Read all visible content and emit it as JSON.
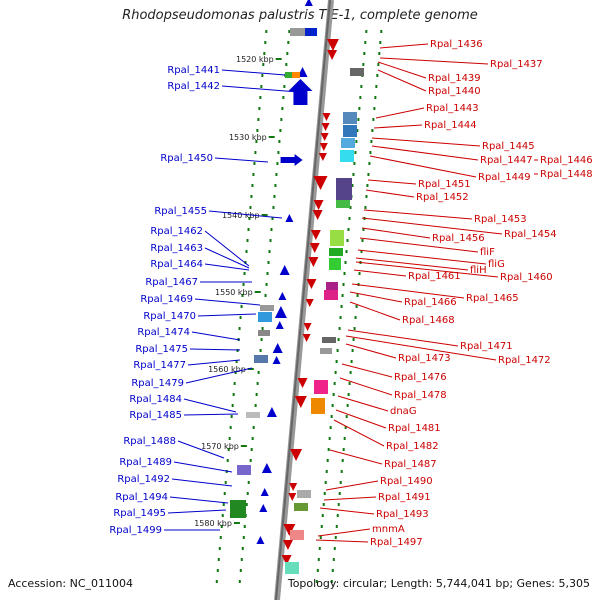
{
  "title": "Rhodopseudomonas palustris TIE-1, complete genome",
  "accession": "Accession: NC_011004",
  "topology": "Topology: circular; Length: 5,744,041 bp; Genes: 5,305",
  "colors": {
    "forward": "#0000cc",
    "reverse": "#cc0000",
    "tick": "#117711"
  },
  "kbp_ticks": [
    "1520 kbp",
    "1530 kbp",
    "1540 kbp",
    "1550 kbp",
    "1560 kbp",
    "1570 kbp",
    "1580 kbp"
  ],
  "left_labels": [
    "Rpal_1441",
    "Rpal_1442",
    "Rpal_1450",
    "Rpal_1455",
    "Rpal_1462",
    "Rpal_1463",
    "Rpal_1464",
    "Rpal_1467",
    "Rpal_1469",
    "Rpal_1470",
    "Rpal_1474",
    "Rpal_1475",
    "Rpal_1477",
    "Rpal_1479",
    "Rpal_1484",
    "Rpal_1485",
    "Rpal_1488",
    "Rpal_1489",
    "Rpal_1492",
    "Rpal_1494",
    "Rpal_1495",
    "Rpal_1499"
  ],
  "right_labels": [
    "Rpal_1436",
    "Rpal_1437",
    "Rpal_1439",
    "Rpal_1440",
    "Rpal_1443",
    "Rpal_1444",
    "Rpal_1445",
    "Rpal_1447",
    "Rpal_1446",
    "Rpal_1449",
    "Rpal_1448",
    "Rpal_1451",
    "Rpal_1452",
    "Rpal_1453",
    "Rpal_1454",
    "Rpal_1456",
    "fliF",
    "fliG",
    "fliH",
    "Rpal_1460",
    "Rpal_1461",
    "Rpal_1465",
    "Rpal_1466",
    "Rpal_1468",
    "Rpal_1471",
    "Rpal_1472",
    "Rpal_1473",
    "Rpal_1476",
    "Rpal_1478",
    "dnaG",
    "Rpal_1481",
    "Rpal_1482",
    "Rpal_1487",
    "Rpal_1490",
    "Rpal_1491",
    "Rpal_1493",
    "mnmA",
    "Rpal_1497"
  ]
}
